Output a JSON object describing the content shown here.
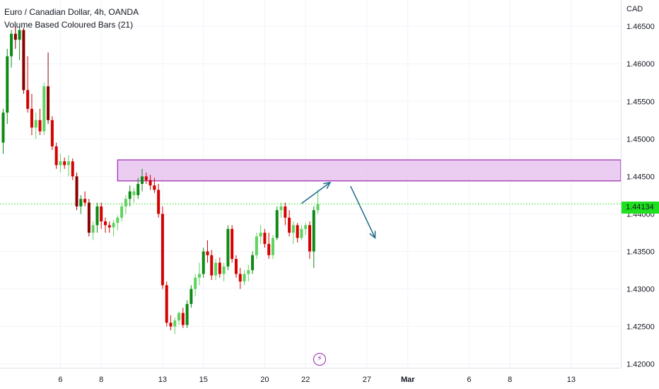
{
  "header": {
    "symbol_line": "Euro / Canadian Dollar, 4h, OANDA",
    "indicator_line": "Volume Based Coloured Bars (21)"
  },
  "price_axis": {
    "currency": "CAD",
    "current_price": "1.44134",
    "current_price_color": "#1fe01f"
  },
  "event_marker": {
    "icon": "lightning-icon",
    "color": "#9c27b0"
  },
  "colors": {
    "up_strong": "#0e8a16",
    "up_light": "#5fd35f",
    "down_strong": "#d50000",
    "down_dark": "#8b0000",
    "zone_fill": "#e8c8ee",
    "zone_border": "#9c27b0",
    "arrow": "#1e6b8a",
    "price_line": "#1fe01f"
  },
  "chart_data": {
    "type": "candlestick",
    "title": "Euro / Canadian Dollar, 4h, OANDA",
    "indicator": "Volume Based Coloured Bars (21)",
    "y_range": [
      1.4195,
      1.4685
    ],
    "y_ticks": [
      "1.46500",
      "1.46000",
      "1.45500",
      "1.45000",
      "1.44500",
      "1.44000",
      "1.43500",
      "1.43000",
      "1.42500",
      "1.42000"
    ],
    "x_ticks": [
      {
        "label": "6",
        "bar": 14,
        "bold": false
      },
      {
        "label": "8",
        "bar": 24,
        "bold": false
      },
      {
        "label": "13",
        "bar": 39,
        "bold": false
      },
      {
        "label": "15",
        "bar": 49,
        "bold": false
      },
      {
        "label": "20",
        "bar": 64,
        "bold": false
      },
      {
        "label": "22",
        "bar": 74,
        "bold": false
      },
      {
        "label": "27",
        "bar": 89,
        "bold": false
      },
      {
        "label": "Mar",
        "bar": 99,
        "bold": true
      },
      {
        "label": "6",
        "bar": 114,
        "bold": false
      },
      {
        "label": "8",
        "bar": 124,
        "bold": false
      },
      {
        "label": "13",
        "bar": 139,
        "bold": false
      }
    ],
    "current_price": 1.44134,
    "zone": {
      "from_bar": 28,
      "low": 1.4444,
      "high": 1.4472
    },
    "arrows": [
      {
        "from": [
          73,
          1.4414
        ],
        "to": [
          80,
          1.4442
        ]
      },
      {
        "from": [
          85,
          1.4437
        ],
        "to": [
          91,
          1.4368
        ]
      }
    ],
    "candles": [
      {
        "o": 1.4495,
        "h": 1.454,
        "l": 1.448,
        "c": 1.4535,
        "v": "up_strong"
      },
      {
        "o": 1.4535,
        "h": 1.462,
        "l": 1.452,
        "c": 1.461,
        "v": "up_strong"
      },
      {
        "o": 1.461,
        "h": 1.4645,
        "l": 1.4595,
        "c": 1.464,
        "v": "up_strong"
      },
      {
        "o": 1.464,
        "h": 1.465,
        "l": 1.462,
        "c": 1.4632,
        "v": "down_dark"
      },
      {
        "o": 1.4632,
        "h": 1.465,
        "l": 1.4605,
        "c": 1.4645,
        "v": "up_strong"
      },
      {
        "o": 1.4645,
        "h": 1.4648,
        "l": 1.456,
        "c": 1.4565,
        "v": "down_dark"
      },
      {
        "o": 1.4565,
        "h": 1.461,
        "l": 1.4535,
        "c": 1.454,
        "v": "down_strong"
      },
      {
        "o": 1.454,
        "h": 1.456,
        "l": 1.4505,
        "c": 1.4515,
        "v": "down_strong"
      },
      {
        "o": 1.4515,
        "h": 1.4535,
        "l": 1.45,
        "c": 1.4525,
        "v": "up_light"
      },
      {
        "o": 1.4525,
        "h": 1.454,
        "l": 1.4505,
        "c": 1.451,
        "v": "down_strong"
      },
      {
        "o": 1.451,
        "h": 1.4575,
        "l": 1.4505,
        "c": 1.457,
        "v": "up_light"
      },
      {
        "o": 1.457,
        "h": 1.4615,
        "l": 1.452,
        "c": 1.4525,
        "v": "down_dark"
      },
      {
        "o": 1.4525,
        "h": 1.453,
        "l": 1.4485,
        "c": 1.449,
        "v": "down_strong"
      },
      {
        "o": 1.449,
        "h": 1.4495,
        "l": 1.446,
        "c": 1.4465,
        "v": "down_strong"
      },
      {
        "o": 1.4465,
        "h": 1.448,
        "l": 1.4455,
        "c": 1.447,
        "v": "up_light"
      },
      {
        "o": 1.447,
        "h": 1.4475,
        "l": 1.446,
        "c": 1.4465,
        "v": "down_strong"
      },
      {
        "o": 1.4465,
        "h": 1.4478,
        "l": 1.445,
        "c": 1.447,
        "v": "up_light"
      },
      {
        "o": 1.447,
        "h": 1.4474,
        "l": 1.4445,
        "c": 1.445,
        "v": "down_strong"
      },
      {
        "o": 1.445,
        "h": 1.4455,
        "l": 1.4405,
        "c": 1.441,
        "v": "down_dark"
      },
      {
        "o": 1.441,
        "h": 1.4425,
        "l": 1.44,
        "c": 1.442,
        "v": "up_strong"
      },
      {
        "o": 1.442,
        "h": 1.443,
        "l": 1.441,
        "c": 1.4415,
        "v": "down_strong"
      },
      {
        "o": 1.4415,
        "h": 1.442,
        "l": 1.437,
        "c": 1.4375,
        "v": "down_dark"
      },
      {
        "o": 1.4375,
        "h": 1.439,
        "l": 1.4365,
        "c": 1.4385,
        "v": "up_light"
      },
      {
        "o": 1.4385,
        "h": 1.4415,
        "l": 1.4375,
        "c": 1.441,
        "v": "up_strong"
      },
      {
        "o": 1.441,
        "h": 1.4415,
        "l": 1.438,
        "c": 1.439,
        "v": "down_strong"
      },
      {
        "o": 1.439,
        "h": 1.4395,
        "l": 1.4375,
        "c": 1.4385,
        "v": "down_strong"
      },
      {
        "o": 1.4385,
        "h": 1.439,
        "l": 1.4375,
        "c": 1.4382,
        "v": "down_strong"
      },
      {
        "o": 1.4382,
        "h": 1.4392,
        "l": 1.437,
        "c": 1.4388,
        "v": "up_light"
      },
      {
        "o": 1.4388,
        "h": 1.4398,
        "l": 1.4378,
        "c": 1.4395,
        "v": "up_light"
      },
      {
        "o": 1.4395,
        "h": 1.4415,
        "l": 1.439,
        "c": 1.441,
        "v": "up_light"
      },
      {
        "o": 1.441,
        "h": 1.4425,
        "l": 1.44,
        "c": 1.442,
        "v": "up_light"
      },
      {
        "o": 1.442,
        "h": 1.4438,
        "l": 1.441,
        "c": 1.443,
        "v": "up_strong"
      },
      {
        "o": 1.443,
        "h": 1.4435,
        "l": 1.4415,
        "c": 1.4425,
        "v": "up_light"
      },
      {
        "o": 1.4425,
        "h": 1.4448,
        "l": 1.442,
        "c": 1.444,
        "v": "up_strong"
      },
      {
        "o": 1.444,
        "h": 1.446,
        "l": 1.443,
        "c": 1.445,
        "v": "up_strong"
      },
      {
        "o": 1.445,
        "h": 1.4455,
        "l": 1.444,
        "c": 1.4445,
        "v": "down_strong"
      },
      {
        "o": 1.4445,
        "h": 1.4452,
        "l": 1.4432,
        "c": 1.4438,
        "v": "down_strong"
      },
      {
        "o": 1.4438,
        "h": 1.4448,
        "l": 1.4428,
        "c": 1.4432,
        "v": "down_strong"
      },
      {
        "o": 1.4432,
        "h": 1.444,
        "l": 1.4395,
        "c": 1.44,
        "v": "down_strong"
      },
      {
        "o": 1.44,
        "h": 1.441,
        "l": 1.43,
        "c": 1.4305,
        "v": "down_strong"
      },
      {
        "o": 1.4305,
        "h": 1.431,
        "l": 1.425,
        "c": 1.4255,
        "v": "down_strong"
      },
      {
        "o": 1.4255,
        "h": 1.4265,
        "l": 1.4245,
        "c": 1.425,
        "v": "down_strong"
      },
      {
        "o": 1.425,
        "h": 1.4262,
        "l": 1.424,
        "c": 1.4258,
        "v": "up_light"
      },
      {
        "o": 1.4258,
        "h": 1.427,
        "l": 1.4252,
        "c": 1.4268,
        "v": "up_light"
      },
      {
        "o": 1.4268,
        "h": 1.4275,
        "l": 1.4248,
        "c": 1.4252,
        "v": "down_strong"
      },
      {
        "o": 1.4252,
        "h": 1.4285,
        "l": 1.4248,
        "c": 1.428,
        "v": "up_strong"
      },
      {
        "o": 1.428,
        "h": 1.4305,
        "l": 1.4275,
        "c": 1.43,
        "v": "up_strong"
      },
      {
        "o": 1.43,
        "h": 1.432,
        "l": 1.429,
        "c": 1.4315,
        "v": "up_light"
      },
      {
        "o": 1.4315,
        "h": 1.4335,
        "l": 1.4305,
        "c": 1.432,
        "v": "up_light"
      },
      {
        "o": 1.432,
        "h": 1.4355,
        "l": 1.4315,
        "c": 1.435,
        "v": "up_strong"
      },
      {
        "o": 1.435,
        "h": 1.4365,
        "l": 1.4335,
        "c": 1.4345,
        "v": "down_strong"
      },
      {
        "o": 1.4345,
        "h": 1.4352,
        "l": 1.4312,
        "c": 1.4318,
        "v": "down_strong"
      },
      {
        "o": 1.4318,
        "h": 1.434,
        "l": 1.4312,
        "c": 1.4335,
        "v": "up_light"
      },
      {
        "o": 1.4335,
        "h": 1.4342,
        "l": 1.4315,
        "c": 1.432,
        "v": "down_strong"
      },
      {
        "o": 1.432,
        "h": 1.4335,
        "l": 1.431,
        "c": 1.433,
        "v": "up_light"
      },
      {
        "o": 1.433,
        "h": 1.4385,
        "l": 1.4325,
        "c": 1.438,
        "v": "up_strong"
      },
      {
        "o": 1.438,
        "h": 1.4385,
        "l": 1.4335,
        "c": 1.434,
        "v": "down_strong"
      },
      {
        "o": 1.434,
        "h": 1.4345,
        "l": 1.4315,
        "c": 1.432,
        "v": "down_strong"
      },
      {
        "o": 1.432,
        "h": 1.4328,
        "l": 1.43,
        "c": 1.431,
        "v": "down_strong"
      },
      {
        "o": 1.431,
        "h": 1.4325,
        "l": 1.4305,
        "c": 1.432,
        "v": "up_light"
      },
      {
        "o": 1.432,
        "h": 1.4332,
        "l": 1.431,
        "c": 1.4325,
        "v": "up_light"
      },
      {
        "o": 1.4325,
        "h": 1.435,
        "l": 1.432,
        "c": 1.4345,
        "v": "up_strong"
      },
      {
        "o": 1.4345,
        "h": 1.4375,
        "l": 1.434,
        "c": 1.437,
        "v": "up_light"
      },
      {
        "o": 1.437,
        "h": 1.4385,
        "l": 1.436,
        "c": 1.4375,
        "v": "up_light"
      },
      {
        "o": 1.4375,
        "h": 1.438,
        "l": 1.4355,
        "c": 1.436,
        "v": "down_strong"
      },
      {
        "o": 1.436,
        "h": 1.4375,
        "l": 1.434,
        "c": 1.4345,
        "v": "down_strong"
      },
      {
        "o": 1.4345,
        "h": 1.4372,
        "l": 1.434,
        "c": 1.4368,
        "v": "up_light"
      },
      {
        "o": 1.4368,
        "h": 1.441,
        "l": 1.4365,
        "c": 1.4405,
        "v": "up_strong"
      },
      {
        "o": 1.4405,
        "h": 1.4415,
        "l": 1.4395,
        "c": 1.441,
        "v": "up_light"
      },
      {
        "o": 1.441,
        "h": 1.4415,
        "l": 1.4385,
        "c": 1.4395,
        "v": "down_strong"
      },
      {
        "o": 1.4395,
        "h": 1.4405,
        "l": 1.437,
        "c": 1.4375,
        "v": "down_strong"
      },
      {
        "o": 1.4375,
        "h": 1.439,
        "l": 1.436,
        "c": 1.4385,
        "v": "up_light"
      },
      {
        "o": 1.4385,
        "h": 1.4388,
        "l": 1.4362,
        "c": 1.4368,
        "v": "down_strong"
      },
      {
        "o": 1.4368,
        "h": 1.4385,
        "l": 1.4365,
        "c": 1.438,
        "v": "up_light"
      },
      {
        "o": 1.438,
        "h": 1.4388,
        "l": 1.4372,
        "c": 1.4385,
        "v": "up_light"
      },
      {
        "o": 1.4385,
        "h": 1.439,
        "l": 1.434,
        "c": 1.435,
        "v": "down_strong"
      },
      {
        "o": 1.435,
        "h": 1.441,
        "l": 1.4328,
        "c": 1.4405,
        "v": "up_strong"
      },
      {
        "o": 1.4405,
        "h": 1.4432,
        "l": 1.44,
        "c": 1.4413,
        "v": "up_light"
      }
    ]
  }
}
